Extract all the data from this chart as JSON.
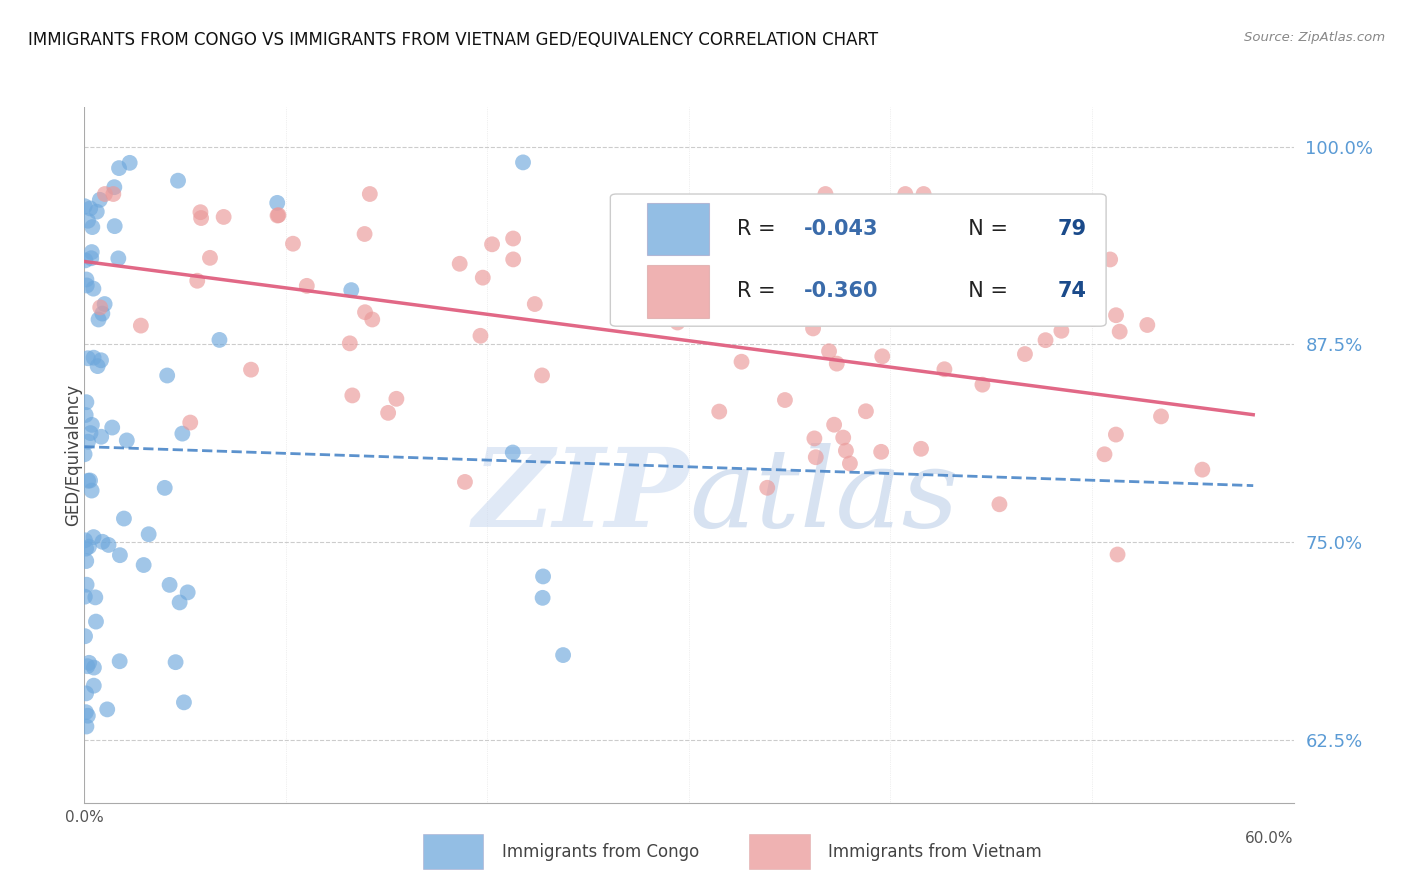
{
  "title": "IMMIGRANTS FROM CONGO VS IMMIGRANTS FROM VIETNAM GED/EQUIVALENCY CORRELATION CHART",
  "source": "Source: ZipAtlas.com",
  "ylabel": "GED/Equivalency",
  "right_ytick_labels": [
    "100.0%",
    "87.5%",
    "75.0%",
    "62.5%"
  ],
  "right_ytick_values": [
    1.0,
    0.875,
    0.75,
    0.625
  ],
  "xlim": [
    0.0,
    0.6
  ],
  "ylim": [
    0.585,
    1.025
  ],
  "congo_R": -0.043,
  "congo_N": 79,
  "vietnam_R": -0.36,
  "vietnam_N": 74,
  "legend_label_congo": "Immigrants from Congo",
  "legend_label_vietnam": "Immigrants from Vietnam",
  "congo_color": "#6fa8dc",
  "vietnam_color": "#ea9999",
  "trendline_congo_color": "#4a86c8",
  "trendline_vietnam_color": "#e06080",
  "watermark": "ZIPatlas",
  "watermark_zip_color": "#c8d8f0",
  "watermark_atlas_color": "#a0b8d8",
  "grid_color": "#cccccc",
  "axis_color": "#aaaaaa",
  "right_tick_color": "#5b9bd5",
  "legend_text_color_dark": "#222222",
  "legend_r_color": "#3a6baa",
  "legend_n_color": "#1a4a8a"
}
